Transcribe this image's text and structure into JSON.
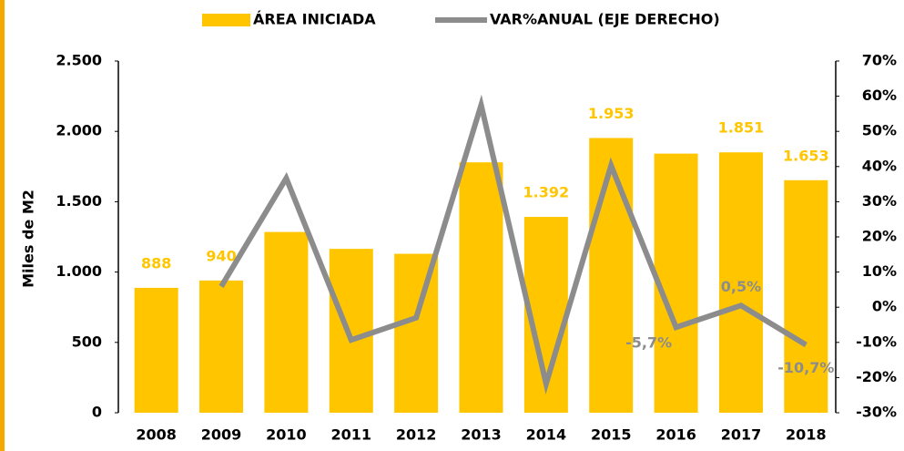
{
  "chart_data": {
    "type": "bar_line",
    "categories": [
      "2008",
      "2009",
      "2010",
      "2011",
      "2012",
      "2013",
      "2014",
      "2015",
      "2016",
      "2017",
      "2018"
    ],
    "y_label": "Miles de M2",
    "series": [
      {
        "name": "ÁREA INICIADA",
        "type": "bar",
        "color": "#FFC600",
        "values": [
          888,
          940,
          1285,
          1165,
          1130,
          1780,
          1392,
          1953,
          1842,
          1851,
          1653
        ],
        "value_labels": [
          "888",
          "940",
          null,
          null,
          null,
          null,
          "1.392",
          "1.953",
          null,
          "1.851",
          "1.653"
        ]
      },
      {
        "name": "VAR%ANUAL (EJE DERECHO)",
        "type": "line",
        "color": "#8C8C8C",
        "axis": "y2",
        "values": [
          null,
          5.9,
          36.7,
          -9.3,
          -3.0,
          57.5,
          -21.8,
          40.3,
          -5.7,
          0.5,
          -10.7
        ],
        "value_labels": [
          null,
          null,
          null,
          null,
          null,
          null,
          null,
          null,
          "-5,7%",
          "0,5%",
          "-10,7%"
        ]
      }
    ],
    "ylim": [
      0,
      2500
    ],
    "yticks": [
      0,
      500,
      {
        "value": 1000,
        "label": "1.000"
      },
      {
        "value": 1500,
        "label": "1.500"
      },
      {
        "value": 2000,
        "label": "2.000"
      },
      {
        "value": 2500,
        "label": "2.500"
      }
    ],
    "y2lim": [
      -30,
      70
    ],
    "y2ticks": [
      {
        "value": -30,
        "label": "-30%"
      },
      {
        "value": -20,
        "label": "-20%"
      },
      {
        "value": -10,
        "label": "-10%"
      },
      {
        "value": 0,
        "label": "0%"
      },
      {
        "value": 10,
        "label": "10%"
      },
      {
        "value": 20,
        "label": "20%"
      },
      {
        "value": 30,
        "label": "30%"
      },
      {
        "value": 40,
        "label": "40%"
      },
      {
        "value": 50,
        "label": "50%"
      },
      {
        "value": 60,
        "label": "60%"
      },
      {
        "value": 70,
        "label": "70%"
      }
    ],
    "grid": false
  }
}
